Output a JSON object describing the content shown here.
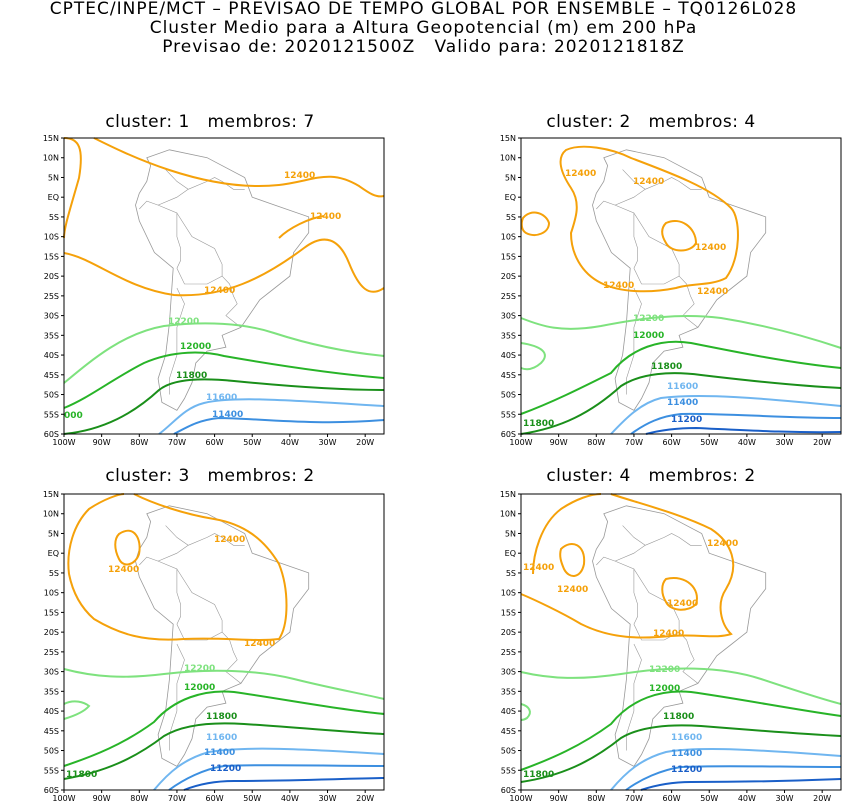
{
  "header": {
    "line1": "CPTEC/INPE/MCT – PREVISAO DE TEMPO GLOBAL POR ENSEMBLE – TQ0126L028",
    "line2": "Cluster Medio para a Altura Geopotencial (m) em 200 hPa",
    "line3": "Previsao de: 2020121500Z   Valido para: 2020121818Z"
  },
  "axes": {
    "lat_labels": [
      "15N",
      "10N",
      "5N",
      "EQ",
      "5S",
      "10S",
      "15S",
      "20S",
      "25S",
      "30S",
      "35S",
      "40S",
      "45S",
      "50S",
      "55S",
      "60S"
    ],
    "lon_labels": [
      "100W",
      "90W",
      "80W",
      "70W",
      "60W",
      "50W",
      "40W",
      "30W",
      "20W"
    ]
  },
  "colors": {
    "12400": "#f5a10a",
    "12200": "#7ee27e",
    "12000": "#28b428",
    "11800": "#1a8f1a",
    "11600": "#70b6f0",
    "11400": "#3c8fe0",
    "11200": "#1a5fc8",
    "land": "#999999"
  },
  "panels": [
    {
      "title": "cluster: 1   membros: 7",
      "labels": {
        "a": "12400",
        "b": "12400",
        "c": "12400",
        "d": "12200",
        "e": "12000",
        "f": "11800",
        "g": "11600",
        "h": "11400",
        "i": "000"
      }
    },
    {
      "title": "cluster: 2   membros: 4",
      "labels": {
        "a": "12400",
        "b": "12400",
        "c": "12400",
        "d": "12400",
        "e": "12400",
        "f": "12200",
        "g": "12000",
        "h": "11800",
        "i": "11600",
        "j": "11400",
        "k": "11200",
        "l": "11800"
      }
    },
    {
      "title": "cluster: 3   membros: 2",
      "labels": {
        "a": "12400",
        "b": "12400",
        "c": "12400",
        "d": "12200",
        "e": "12000",
        "f": "11800",
        "g": "11600",
        "h": "11400",
        "i": "11200",
        "j": "11800"
      }
    },
    {
      "title": "cluster: 4   membros: 2",
      "labels": {
        "a": "12400",
        "b": "12400",
        "c": "12400",
        "d": "12400",
        "e": "12400",
        "f": "12200",
        "g": "12000",
        "h": "11800",
        "i": "11600",
        "j": "11400",
        "k": "11200",
        "l": "11800"
      }
    }
  ]
}
